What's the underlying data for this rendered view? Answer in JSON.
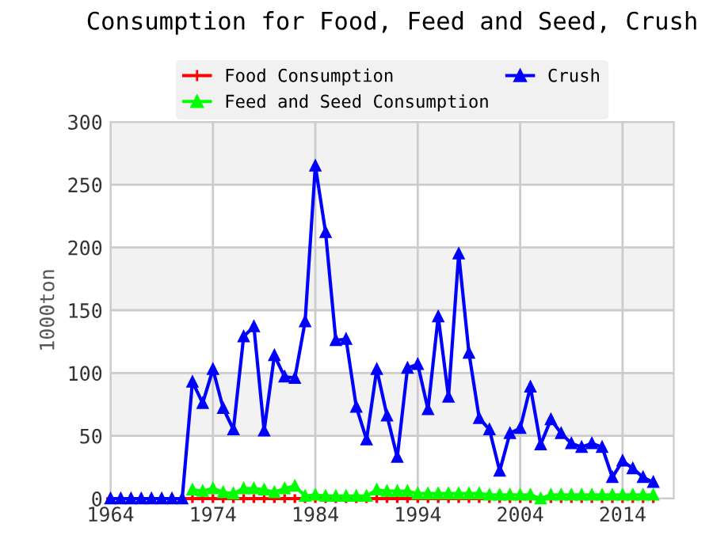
{
  "chart_data": {
    "type": "line",
    "title": "Consumption for Food, Feed and Seed, Crush",
    "ylabel": "1000ton",
    "x": [
      1964,
      1965,
      1966,
      1967,
      1968,
      1969,
      1970,
      1971,
      1972,
      1973,
      1974,
      1975,
      1976,
      1977,
      1978,
      1979,
      1980,
      1981,
      1982,
      1983,
      1984,
      1985,
      1986,
      1987,
      1988,
      1989,
      1990,
      1991,
      1992,
      1993,
      1994,
      1995,
      1996,
      1997,
      1998,
      1999,
      2000,
      2001,
      2002,
      2003,
      2004,
      2005,
      2006,
      2007,
      2008,
      2009,
      2010,
      2011,
      2012,
      2013,
      2014,
      2015,
      2016,
      2017
    ],
    "series": [
      {
        "name": "Food Consumption",
        "color": "#ff0000",
        "marker": "cross",
        "values": [
          0,
          0,
          0,
          0,
          0,
          0,
          0,
          0,
          0,
          0,
          0,
          0,
          0,
          0,
          0,
          0,
          0,
          0,
          0,
          0,
          0,
          0,
          0,
          0,
          0,
          0,
          0,
          0,
          0,
          0,
          0,
          0,
          0,
          0,
          0,
          0,
          0,
          0,
          0,
          0,
          0,
          0,
          0,
          0,
          0,
          0,
          0,
          0,
          0,
          0,
          0,
          0,
          0,
          0
        ]
      },
      {
        "name": "Feed and Seed Consumption",
        "color": "#00ff00",
        "marker": "triangle",
        "values": [
          null,
          null,
          null,
          null,
          null,
          null,
          null,
          null,
          7,
          6,
          8,
          5,
          4,
          8,
          8,
          7,
          5,
          8,
          10,
          2,
          3,
          2,
          2,
          2,
          2,
          2,
          7,
          6,
          6,
          6,
          4,
          4,
          4,
          4,
          4,
          4,
          4,
          3,
          3,
          3,
          3,
          3,
          0,
          3,
          3,
          3,
          3,
          3,
          3,
          3,
          3,
          3,
          3,
          3
        ]
      },
      {
        "name": "Crush",
        "color": "#0000ff",
        "marker": "triangle",
        "values": [
          0,
          0,
          0,
          0,
          0,
          0,
          0,
          0,
          93,
          76,
          103,
          72,
          55,
          129,
          137,
          54,
          114,
          97,
          96,
          141,
          265,
          212,
          126,
          127,
          73,
          47,
          103,
          66,
          33,
          104,
          107,
          71,
          145,
          81,
          195,
          116,
          64,
          55,
          22,
          52,
          56,
          89,
          43,
          63,
          52,
          44,
          41,
          44,
          41,
          17,
          30,
          24,
          17,
          13
        ]
      }
    ],
    "xlim": [
      1964,
      2019
    ],
    "xticks": [
      1964,
      1974,
      1984,
      1994,
      2004,
      2014
    ],
    "ylim": [
      0,
      300
    ],
    "yticks": [
      0,
      50,
      100,
      150,
      200,
      250,
      300
    ],
    "bands": [
      {
        "axis": "y",
        "from": 50,
        "to": 100,
        "color": "#f2f2f2"
      },
      {
        "axis": "y",
        "from": 150,
        "to": 200,
        "color": "#f2f2f2"
      },
      {
        "axis": "y",
        "from": 250,
        "to": 300,
        "color": "#f2f2f2"
      }
    ],
    "grid": true,
    "legend": "top",
    "line_style": "solid"
  }
}
